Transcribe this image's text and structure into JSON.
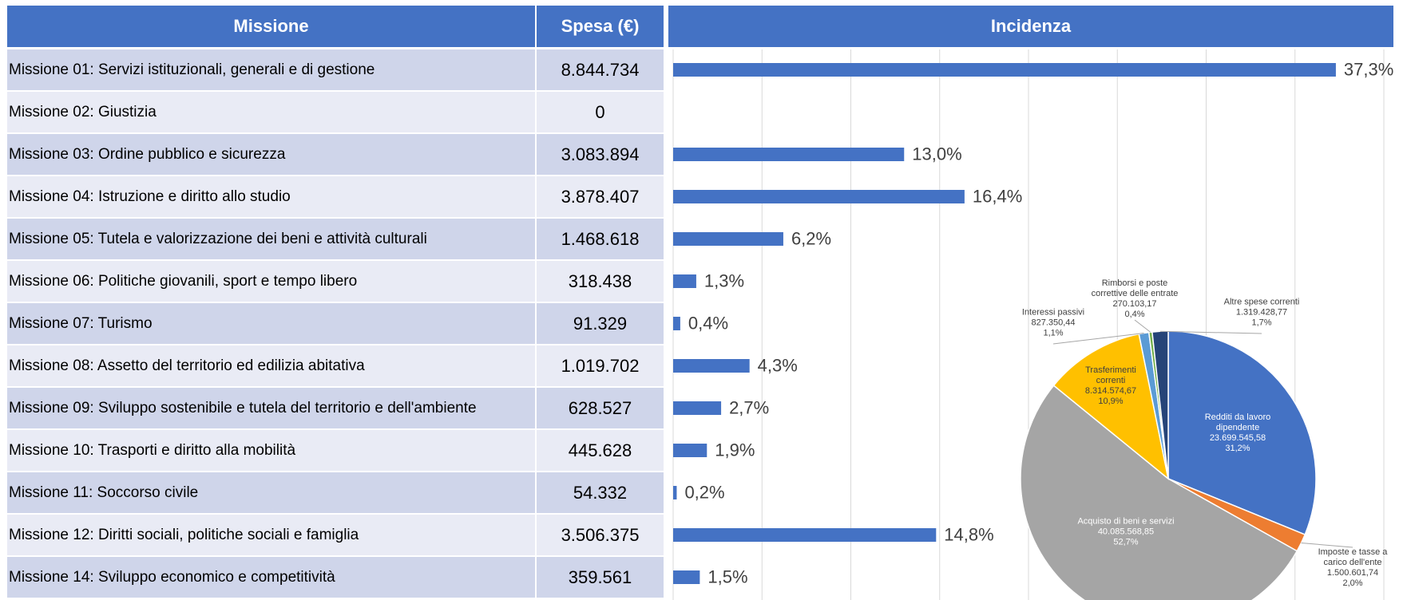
{
  "table": {
    "headers": [
      "Missione",
      "Spesa  (€)",
      "Incidenza"
    ],
    "rows": [
      [
        "Missione 01: Servizi istituzionali, generali e di gestione",
        "8.844.734"
      ],
      [
        "Missione 02: Giustizia",
        "0"
      ],
      [
        "Missione 03: Ordine pubblico e sicurezza",
        "3.083.894"
      ],
      [
        "Missione 04: Istruzione e diritto allo studio",
        "3.878.407"
      ],
      [
        "Missione 05: Tutela e valorizzazione dei beni e attività culturali",
        "1.468.618"
      ],
      [
        "Missione 06: Politiche giovanili, sport e tempo libero",
        "318.438"
      ],
      [
        "Missione 07: Turismo",
        "91.329"
      ],
      [
        "Missione 08: Assetto del territorio ed edilizia abitativa",
        "1.019.702"
      ],
      [
        "Missione 09: Sviluppo sostenibile e tutela del territorio e dell'ambiente",
        "628.527"
      ],
      [
        "Missione 10: Trasporti e diritto alla mobilità",
        "445.628"
      ],
      [
        "Missione 11: Soccorso civile",
        "54.332"
      ],
      [
        "Missione 12: Diritti sociali, politiche sociali e famiglia",
        "3.506.375"
      ],
      [
        "Missione 14: Sviluppo economico e competitività",
        "359.561"
      ]
    ]
  },
  "chart_data": [
    {
      "type": "bar",
      "orientation": "horizontal",
      "color": "#4472c4",
      "values": [
        37.3,
        0,
        13.0,
        16.4,
        6.2,
        1.3,
        0.4,
        4.3,
        2.7,
        1.9,
        0.2,
        14.8,
        1.5
      ],
      "value_labels": [
        "37,3%",
        null,
        "13,0%",
        "16,4%",
        "6,2%",
        "1,3%",
        "0,4%",
        "4,3%",
        "2,7%",
        "1,9%",
        "0,2%",
        "14,8%",
        "1,5%"
      ],
      "xlim": [
        0,
        40
      ],
      "xticks": [
        0,
        5,
        10,
        15,
        20,
        25,
        30,
        35,
        40
      ],
      "grid": true
    },
    {
      "type": "pie",
      "categories": [
        "Redditi da lavoro dipendente",
        "Imposte e tasse a carico dell'ente",
        "Acquisto di beni e servizi",
        "Trasferimenti correnti",
        "Interessi passivi",
        "Rimborsi e poste correttive delle entrate",
        "Altre spese correnti"
      ],
      "values": [
        23699545.58,
        1500601.74,
        40085568.85,
        8314574.67,
        827350.44,
        270103.17,
        1319428.77
      ],
      "value_labels": [
        "23.699.545,58",
        "1.500.601,74",
        "40.085.568,85",
        "8.314.574,67",
        "827.350,44",
        "270.103,17",
        "1.319.428,77"
      ],
      "percent_labels": [
        "31,2%",
        "2,0%",
        "52,7%",
        "10,9%",
        "1,1%",
        "0,4%",
        "1,7%"
      ],
      "colors": [
        "#4472c4",
        "#ed7d31",
        "#a5a5a5",
        "#ffc000",
        "#5b9bd5",
        "#70ad47",
        "#264478"
      ]
    }
  ]
}
